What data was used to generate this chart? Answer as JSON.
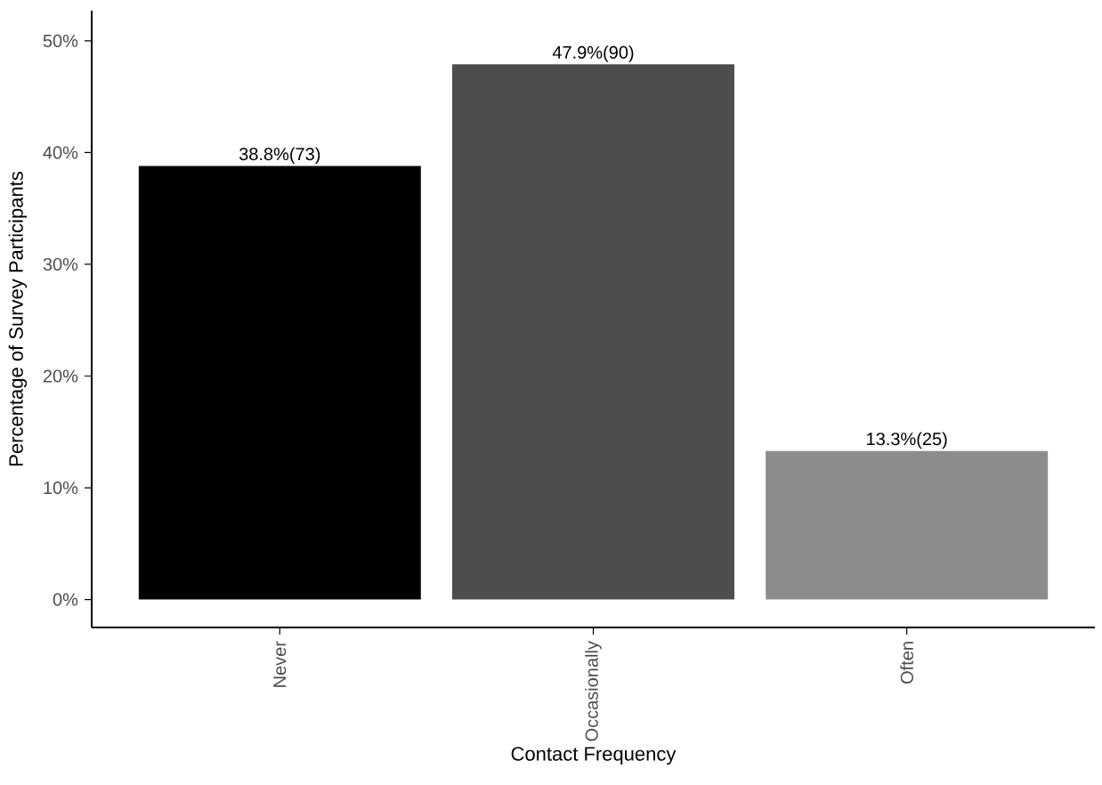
{
  "chart_data": {
    "type": "bar",
    "xlabel": "Contact Frequency",
    "ylabel": "Percentage of Survey Participants",
    "categories": [
      "Never",
      "Occasionally",
      "Often"
    ],
    "values": [
      38.8,
      47.9,
      13.3
    ],
    "colors": [
      "#000000",
      "#4d4d4d",
      "#8c8c8c"
    ],
    "value_labels": [
      "38.8%(73)",
      "47.9%(90)",
      "13.3%(25)"
    ],
    "ylim": [
      -2.5,
      52.7
    ],
    "yticks": [
      {
        "value": 0,
        "label": "0%"
      },
      {
        "value": 10,
        "label": "10%"
      },
      {
        "value": 20,
        "label": "20%"
      },
      {
        "value": 30,
        "label": "30%"
      },
      {
        "value": 40,
        "label": "40%"
      },
      {
        "value": 50,
        "label": "50%"
      }
    ],
    "grid": false
  }
}
